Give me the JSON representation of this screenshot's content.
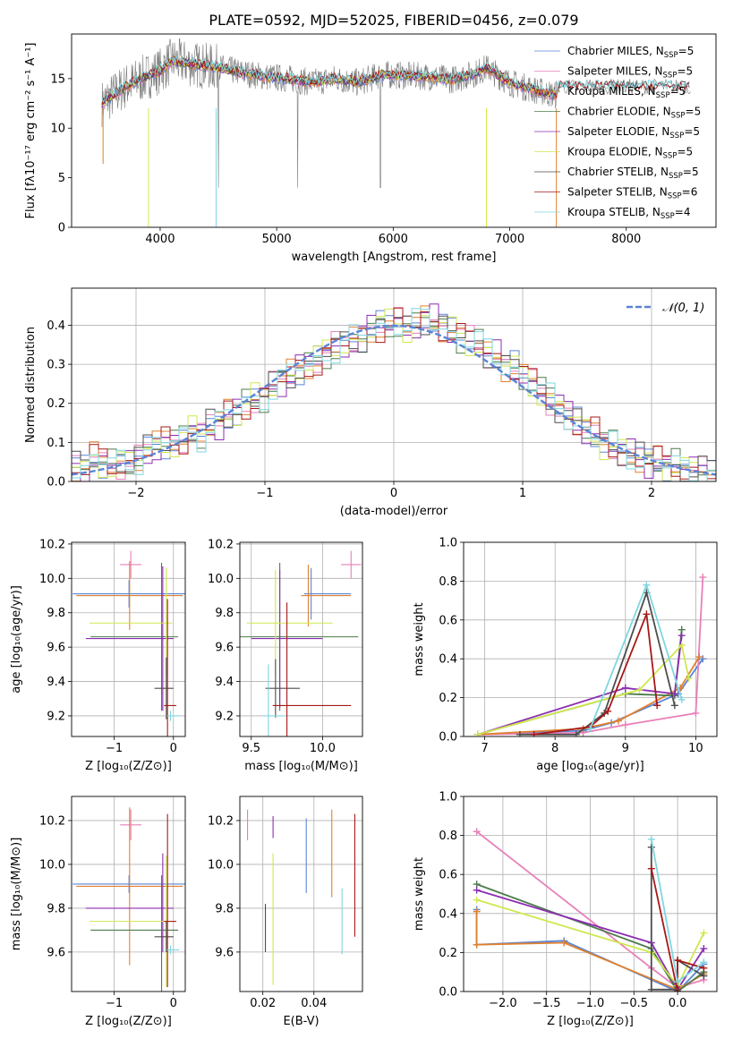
{
  "title": "PLATE=0592, MJD=52025, FIBERID=0456, z=0.079",
  "colors": {
    "Chabrier MILES": "#5b84d6",
    "Salpeter MILES": "#e87fb9",
    "Kroupa MILES": "#e0812f",
    "Chabrier ELODIE": "#4c7c4c",
    "Salpeter ELODIE": "#8c2db1",
    "Kroupa ELODIE": "#cfe84d",
    "Chabrier STELIB": "#4d4d4d",
    "Salpeter STELIB": "#a81818",
    "Kroupa STELIB": "#7fd6e0",
    "gauss": "#5b84d6"
  },
  "chart_data": [
    {
      "id": "spectrum",
      "type": "line",
      "xlabel": "wavelength [Angstrom, rest frame]",
      "ylabel": "Flux [fλ10⁻¹⁷ erg cm⁻² s⁻¹ A⁻¹]",
      "xlim": [
        3240,
        8770
      ],
      "ylim": [
        0,
        19.5
      ],
      "xticks": [
        4000,
        5000,
        6000,
        7000,
        8000
      ],
      "yticks": [
        0,
        5,
        10,
        15
      ],
      "legend_position": "top-right",
      "legend": [
        {
          "key": "Chabrier MILES",
          "label": "Chabrier MILES, N",
          "n": "5"
        },
        {
          "key": "Salpeter MILES",
          "label": "Salpeter MILES, N",
          "n": "5"
        },
        {
          "key": "Kroupa MILES",
          "label": "Kroupa MILES, N",
          "n": "5"
        },
        {
          "key": "Chabrier ELODIE",
          "label": "Chabrier ELODIE, N",
          "n": "5"
        },
        {
          "key": "Salpeter ELODIE",
          "label": "Salpeter ELODIE, N",
          "n": "5"
        },
        {
          "key": "Kroupa ELODIE",
          "label": "Kroupa ELODIE, N",
          "n": "5"
        },
        {
          "key": "Chabrier STELIB",
          "label": "Chabrier STELIB, N",
          "n": "5"
        },
        {
          "key": "Salpeter STELIB",
          "label": "Salpeter STELIB, N",
          "n": "6"
        },
        {
          "key": "Kroupa STELIB",
          "label": "Kroupa STELIB, N",
          "n": "4"
        }
      ],
      "nsub": "SSP",
      "model_curve": {
        "x": [
          3500,
          3700,
          3900,
          4000,
          4100,
          4300,
          4500,
          4700,
          4900,
          5100,
          5300,
          5500,
          5700,
          5900,
          6100,
          6300,
          6500,
          6700,
          6800,
          7000,
          7200,
          7400
        ],
        "y": [
          12.5,
          14.2,
          15.3,
          15.8,
          16.8,
          16.4,
          16.1,
          15.6,
          15.2,
          15.0,
          14.6,
          15.0,
          14.6,
          15.4,
          15.3,
          15.2,
          14.9,
          15.5,
          16.1,
          14.6,
          13.9,
          13.3
        ]
      }
    },
    {
      "id": "residual_hist",
      "type": "histogram",
      "xlabel": "(data-model)/error",
      "ylabel": "Normed distribution",
      "xlim": [
        -2.5,
        2.5
      ],
      "ylim": [
        0,
        0.495
      ],
      "xticks": [
        -2,
        -1,
        0,
        1,
        2
      ],
      "yticks": [
        0,
        0.1,
        0.2,
        0.3,
        0.4
      ],
      "legend": "𝒩(0, 1)",
      "legend_position": "top-right",
      "bin_width": 0.1,
      "base_values": [
        0.04,
        0.03,
        0.06,
        0.05,
        0.04,
        0.05,
        0.05,
        0.06,
        0.08,
        0.09,
        0.1,
        0.1,
        0.11,
        0.13,
        0.12,
        0.14,
        0.15,
        0.17,
        0.18,
        0.2,
        0.21,
        0.22,
        0.24,
        0.26,
        0.27,
        0.29,
        0.3,
        0.31,
        0.33,
        0.34,
        0.35,
        0.36,
        0.37,
        0.39,
        0.4,
        0.4,
        0.41,
        0.39,
        0.4,
        0.42,
        0.41,
        0.4,
        0.38,
        0.37,
        0.36,
        0.35,
        0.33,
        0.32,
        0.3,
        0.29,
        0.27,
        0.25,
        0.23,
        0.21,
        0.19,
        0.17,
        0.15,
        0.13,
        0.12,
        0.1,
        0.09,
        0.08,
        0.07,
        0.06,
        0.05,
        0.05,
        0.04,
        0.04,
        0.03,
        0.03,
        0.03,
        0.02
      ]
    },
    {
      "id": "age_vs_Z",
      "type": "errorbar",
      "xlabel": "Z [log₁₀(Z/Z⊙)]",
      "ylabel": "age  [log₁₀(age/yr)]",
      "xlim": [
        -1.72,
        0.2
      ],
      "ylim": [
        9.08,
        10.21
      ],
      "xticks": [
        -1,
        0
      ],
      "yticks": [
        9.2,
        9.4,
        9.6,
        9.8,
        10.0,
        10.2
      ],
      "points": [
        {
          "key": "Chabrier MILES",
          "x": -0.75,
          "y": 9.91,
          "xerr": [
            0.95,
            0.95
          ],
          "yerr": [
            0.08,
            0.08
          ]
        },
        {
          "key": "Salpeter MILES",
          "x": -0.72,
          "y": 10.08,
          "xerr": [
            0.18,
            0.18
          ],
          "yerr": [
            0.08,
            0.08
          ]
        },
        {
          "key": "Kroupa MILES",
          "x": -0.74,
          "y": 9.9,
          "xerr": [
            0.9,
            0.9
          ],
          "yerr": [
            0.2,
            0.2
          ]
        },
        {
          "key": "Chabrier ELODIE",
          "x": -0.2,
          "y": 9.66,
          "xerr": [
            1.2,
            0.28
          ],
          "yerr": [
            0.43,
            0.43
          ]
        },
        {
          "key": "Salpeter ELODIE",
          "x": -0.18,
          "y": 9.65,
          "xerr": [
            1.3,
            0.18
          ],
          "yerr": [
            0.42,
            0.42
          ]
        },
        {
          "key": "Kroupa ELODIE",
          "x": -0.12,
          "y": 9.74,
          "xerr": [
            1.3,
            0.1
          ],
          "yerr": [
            0.32,
            0.32
          ]
        },
        {
          "key": "Chabrier STELIB",
          "x": -0.12,
          "y": 9.36,
          "xerr": [
            0.2,
            0.12
          ],
          "yerr": [
            0.18,
            0.18
          ]
        },
        {
          "key": "Salpeter STELIB",
          "x": -0.1,
          "y": 9.26,
          "xerr": [
            0.06,
            0.15
          ],
          "yerr": [
            0.62,
            0.62
          ]
        },
        {
          "key": "Kroupa STELIB",
          "x": -0.05,
          "y": 9.2,
          "xerr": [
            0.06,
            0.15
          ],
          "yerr": [
            0.03,
            0.03
          ]
        }
      ]
    },
    {
      "id": "age_vs_mass",
      "type": "errorbar",
      "xlabel": "mass [log₁₀(M/M⊙)]",
      "ylabel": "",
      "xlim": [
        9.42,
        10.28
      ],
      "ylim": [
        9.08,
        10.21
      ],
      "xticks": [
        9.5,
        10.0
      ],
      "yticks": [
        9.2,
        9.4,
        9.6,
        9.8,
        10.0,
        10.2
      ],
      "points": [
        {
          "key": "Chabrier MILES",
          "x": 9.92,
          "y": 9.91,
          "xerr": [
            0.05,
            0.28
          ],
          "yerr": [
            0.15,
            0.15
          ]
        },
        {
          "key": "Salpeter MILES",
          "x": 10.2,
          "y": 10.08,
          "xerr": [
            0.07,
            0.07
          ],
          "yerr": [
            0.08,
            0.08
          ]
        },
        {
          "key": "Kroupa MILES",
          "x": 9.9,
          "y": 9.9,
          "xerr": [
            0.05,
            0.3
          ],
          "yerr": [
            0.18,
            0.18
          ]
        },
        {
          "key": "Chabrier ELODIE",
          "x": 9.7,
          "y": 9.66,
          "xerr": [
            0.28,
            0.55
          ],
          "yerr": [
            0.43,
            0.43
          ]
        },
        {
          "key": "Salpeter ELODIE",
          "x": 9.7,
          "y": 9.65,
          "xerr": [
            0.2,
            0.3
          ],
          "yerr": [
            0.4,
            0.4
          ]
        },
        {
          "key": "Kroupa ELODIE",
          "x": 9.67,
          "y": 9.74,
          "xerr": [
            0.2,
            0.4
          ],
          "yerr": [
            0.31,
            0.31
          ]
        },
        {
          "key": "Chabrier STELIB",
          "x": 9.67,
          "y": 9.36,
          "xerr": [
            0.07,
            0.17
          ],
          "yerr": [
            0.17,
            0.17
          ]
        },
        {
          "key": "Salpeter STELIB",
          "x": 9.75,
          "y": 9.26,
          "xerr": [
            0.1,
            0.45
          ],
          "yerr": [
            0.6,
            0.6
          ]
        },
        {
          "key": "Kroupa STELIB",
          "x": 9.62,
          "y": 9.2,
          "xerr": [
            0.04,
            0.12
          ],
          "yerr": [
            0.3,
            0.3
          ]
        }
      ]
    },
    {
      "id": "weight_vs_age",
      "type": "line",
      "xlabel": "age  [log₁₀(age/yr)]",
      "ylabel": "mass weight",
      "xlim": [
        6.7,
        10.3
      ],
      "ylim": [
        0,
        1.0
      ],
      "xticks": [
        7,
        8,
        9,
        10
      ],
      "yticks": [
        0.0,
        0.2,
        0.4,
        0.6,
        0.8,
        1.0
      ],
      "series": [
        {
          "key": "Chabrier MILES",
          "x": [
            6.9,
            8.4,
            8.8,
            9.75,
            10.1
          ],
          "y": [
            0.01,
            0.03,
            0.07,
            0.22,
            0.4
          ]
        },
        {
          "key": "Salpeter MILES",
          "x": [
            6.9,
            8.4,
            9.0,
            10.0,
            10.1
          ],
          "y": [
            0.01,
            0.02,
            0.06,
            0.12,
            0.82
          ]
        },
        {
          "key": "Kroupa MILES",
          "x": [
            6.9,
            8.4,
            8.9,
            9.78,
            10.05
          ],
          "y": [
            0.01,
            0.04,
            0.08,
            0.25,
            0.41
          ]
        },
        {
          "key": "Chabrier ELODIE",
          "x": [
            6.9,
            9.0,
            9.7,
            9.8
          ],
          "y": [
            0.01,
            0.22,
            0.21,
            0.55
          ]
        },
        {
          "key": "Salpeter ELODIE",
          "x": [
            6.9,
            9.0,
            9.7,
            9.8
          ],
          "y": [
            0.01,
            0.25,
            0.22,
            0.52
          ]
        },
        {
          "key": "Kroupa ELODIE",
          "x": [
            6.9,
            9.2,
            9.8,
            9.9
          ],
          "y": [
            0.01,
            0.24,
            0.47,
            0.3
          ]
        },
        {
          "key": "Chabrier STELIB",
          "x": [
            7.5,
            8.3,
            8.7,
            9.3,
            9.7
          ],
          "y": [
            0.01,
            0.01,
            0.12,
            0.74,
            0.16
          ]
        },
        {
          "key": "Salpeter STELIB",
          "x": [
            7.7,
            8.5,
            8.75,
            9.3,
            9.45
          ],
          "y": [
            0.01,
            0.05,
            0.13,
            0.63,
            0.16
          ]
        },
        {
          "key": "Kroupa STELIB",
          "x": [
            8.5,
            9.3,
            9.8
          ],
          "y": [
            0.04,
            0.78,
            0.19
          ]
        }
      ]
    },
    {
      "id": "mass_vs_Z",
      "type": "errorbar",
      "xlabel": "Z [log₁₀(Z/Z⊙)]",
      "ylabel": "mass [log₁₀(M/M⊙)]",
      "xlim": [
        -1.72,
        0.2
      ],
      "ylim": [
        9.42,
        10.31
      ],
      "xticks": [
        -1,
        0
      ],
      "yticks": [
        9.6,
        9.8,
        10.0,
        10.2
      ],
      "points": [
        {
          "key": "Chabrier MILES",
          "x": -0.75,
          "y": 9.91,
          "xerr": [
            0.95,
            0.95
          ],
          "yerr": [
            0.04,
            0.04
          ]
        },
        {
          "key": "Salpeter MILES",
          "x": -0.72,
          "y": 10.18,
          "xerr": [
            0.18,
            0.18
          ],
          "yerr": [
            0.07,
            0.07
          ]
        },
        {
          "key": "Kroupa MILES",
          "x": -0.74,
          "y": 9.9,
          "xerr": [
            0.9,
            0.9
          ],
          "yerr": [
            0.36,
            0.36
          ]
        },
        {
          "key": "Chabrier ELODIE",
          "x": -0.2,
          "y": 9.7,
          "xerr": [
            1.2,
            0.28
          ],
          "yerr": [
            0.35,
            0.25
          ]
        },
        {
          "key": "Salpeter ELODIE",
          "x": -0.18,
          "y": 9.8,
          "xerr": [
            1.3,
            0.18
          ],
          "yerr": [
            0.2,
            0.25
          ]
        },
        {
          "key": "Kroupa ELODIE",
          "x": -0.12,
          "y": 9.74,
          "xerr": [
            1.3,
            0.1
          ],
          "yerr": [
            0.3,
            0.3
          ]
        },
        {
          "key": "Chabrier STELIB",
          "x": -0.12,
          "y": 9.67,
          "xerr": [
            0.2,
            0.12
          ],
          "yerr": [
            0.07,
            0.07
          ]
        },
        {
          "key": "Salpeter STELIB",
          "x": -0.1,
          "y": 9.74,
          "xerr": [
            0.06,
            0.15
          ],
          "yerr": [
            0.3,
            0.49
          ]
        },
        {
          "key": "Kroupa STELIB",
          "x": -0.05,
          "y": 9.61,
          "xerr": [
            0.06,
            0.15
          ],
          "yerr": [
            0.02,
            0.02
          ]
        }
      ]
    },
    {
      "id": "mass_vs_EBV",
      "type": "errorbar",
      "xlabel": "E(B-V)",
      "ylabel": "",
      "xlim": [
        0.011,
        0.059
      ],
      "ylim": [
        9.42,
        10.31
      ],
      "xticks": [
        0.02,
        0.04
      ],
      "yticks": [
        9.6,
        9.8,
        10.0,
        10.2
      ],
      "points": [
        {
          "key": "Salpeter MILES",
          "x": 0.014,
          "y": 10.18,
          "yerr": [
            0.07,
            0.07
          ]
        },
        {
          "key": "Chabrier STELIB",
          "x": 0.021,
          "y": 9.71,
          "yerr": [
            0.11,
            0.11
          ]
        },
        {
          "key": "Salpeter ELODIE",
          "x": 0.024,
          "y": 10.17,
          "yerr": [
            0.05,
            0.05
          ]
        },
        {
          "key": "Kroupa ELODIE",
          "x": 0.024,
          "y": 9.75,
          "yerr": [
            0.3,
            0.3
          ]
        },
        {
          "key": "Chabrier MILES",
          "x": 0.037,
          "y": 10.04,
          "yerr": [
            0.17,
            0.17
          ]
        },
        {
          "key": "Kroupa MILES",
          "x": 0.047,
          "y": 10.05,
          "yerr": [
            0.2,
            0.2
          ]
        },
        {
          "key": "Kroupa STELIB",
          "x": 0.051,
          "y": 9.74,
          "yerr": [
            0.15,
            0.15
          ]
        },
        {
          "key": "Salpeter STELIB",
          "x": 0.056,
          "y": 9.95,
          "yerr": [
            0.28,
            0.28
          ]
        }
      ]
    },
    {
      "id": "weight_vs_Z",
      "type": "line",
      "xlabel": "Z [log₁₀(Z/Z⊙)]",
      "ylabel": "mass weight",
      "xlim": [
        -2.45,
        0.45
      ],
      "ylim": [
        0,
        1.0
      ],
      "xticks": [
        -2.0,
        -1.5,
        -1.0,
        -0.5,
        0.0
      ],
      "yticks": [
        0.0,
        0.2,
        0.4,
        0.6,
        0.8,
        1.0
      ],
      "series": [
        {
          "key": "Chabrier MILES",
          "x": [
            -2.3,
            -2.3,
            -1.3,
            0.0,
            0.3
          ],
          "y": [
            0.42,
            0.24,
            0.26,
            0.0,
            0.14
          ]
        },
        {
          "key": "Salpeter MILES",
          "x": [
            -2.3,
            -0.3,
            0.0,
            0.3
          ],
          "y": [
            0.82,
            0.12,
            0.02,
            0.06
          ]
        },
        {
          "key": "Kroupa MILES",
          "x": [
            -2.3,
            -2.3,
            -1.3,
            0.0,
            0.3
          ],
          "y": [
            0.41,
            0.24,
            0.25,
            0.01,
            0.09
          ]
        },
        {
          "key": "Chabrier ELODIE",
          "x": [
            -2.3,
            -0.3,
            0.0,
            0.3
          ],
          "y": [
            0.55,
            0.22,
            0.0,
            0.1
          ]
        },
        {
          "key": "Salpeter ELODIE",
          "x": [
            -2.3,
            -0.3,
            0.0,
            0.3
          ],
          "y": [
            0.52,
            0.25,
            0.01,
            0.22
          ]
        },
        {
          "key": "Kroupa ELODIE",
          "x": [
            -2.3,
            -0.3,
            0.0,
            0.3
          ],
          "y": [
            0.47,
            0.2,
            0.03,
            0.3
          ]
        },
        {
          "key": "Chabrier STELIB",
          "x": [
            -0.3,
            -0.3,
            0.0,
            0.0,
            0.3
          ],
          "y": [
            0.74,
            0.01,
            0.01,
            0.16,
            0.08
          ]
        },
        {
          "key": "Salpeter STELIB",
          "x": [
            -0.3,
            0.0,
            0.0,
            0.3
          ],
          "y": [
            0.63,
            0.0,
            0.16,
            0.12
          ]
        },
        {
          "key": "Kroupa STELIB",
          "x": [
            -0.3,
            0.0,
            0.3
          ],
          "y": [
            0.78,
            0.05,
            0.15
          ]
        }
      ]
    }
  ]
}
